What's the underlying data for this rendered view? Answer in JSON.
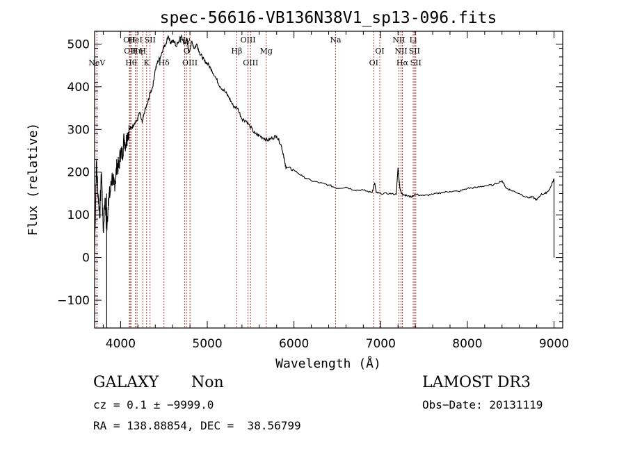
{
  "chart_data": {
    "type": "line",
    "title": "spec-56616-VB136N38V1_sp13-096.fits",
    "xlabel": "Wavelength (Å)",
    "ylabel": "Flux (relative)",
    "xlim": [
      3700,
      9100
    ],
    "ylim": [
      -165,
      530
    ],
    "xticks": [
      4000,
      5000,
      6000,
      7000,
      8000,
      9000
    ],
    "yticks": [
      -100,
      0,
      100,
      200,
      300,
      400,
      500
    ],
    "series": [
      {
        "name": "flux",
        "x": [
          3700,
          3720,
          3740,
          3760,
          3780,
          3800,
          3820,
          3840,
          3860,
          3880,
          3900,
          3920,
          3940,
          3960,
          3980,
          4000,
          4020,
          4040,
          4060,
          4080,
          4100,
          4130,
          4160,
          4190,
          4220,
          4250,
          4280,
          4310,
          4340,
          4370,
          4400,
          4430,
          4460,
          4490,
          4520,
          4550,
          4580,
          4610,
          4640,
          4670,
          4700,
          4730,
          4760,
          4790,
          4820,
          4850,
          4880,
          4910,
          4940,
          4970,
          5000,
          5050,
          5100,
          5150,
          5200,
          5250,
          5300,
          5350,
          5400,
          5450,
          5500,
          5550,
          5600,
          5650,
          5700,
          5750,
          5800,
          5850,
          5880,
          5900,
          5920,
          6000,
          6100,
          6200,
          6300,
          6400,
          6500,
          6600,
          6700,
          6800,
          6900,
          6930,
          6950,
          7000,
          7100,
          7180,
          7200,
          7220,
          7240,
          7260,
          7300,
          7350,
          7400,
          7500,
          7600,
          7700,
          7800,
          7900,
          8000,
          8100,
          8200,
          8300,
          8400,
          8450,
          8500,
          8600,
          8700,
          8750,
          8800,
          8850,
          8900,
          8950,
          9000
        ],
        "y": [
          10,
          220,
          150,
          100,
          200,
          60,
          140,
          60,
          140,
          150,
          190,
          170,
          180,
          220,
          210,
          250,
          240,
          280,
          265,
          290,
          300,
          305,
          315,
          320,
          340,
          315,
          345,
          360,
          385,
          400,
          440,
          460,
          470,
          490,
          500,
          520,
          500,
          510,
          495,
          505,
          520,
          500,
          510,
          480,
          505,
          490,
          500,
          480,
          470,
          460,
          455,
          440,
          420,
          400,
          390,
          375,
          355,
          350,
          325,
          320,
          305,
          290,
          285,
          280,
          275,
          280,
          285,
          265,
          240,
          215,
          210,
          205,
          190,
          180,
          175,
          170,
          162,
          165,
          158,
          158,
          152,
          175,
          152,
          150,
          150,
          148,
          210,
          165,
          150,
          148,
          145,
          142,
          148,
          145,
          148,
          152,
          155,
          155,
          162,
          164,
          168,
          170,
          180,
          162,
          158,
          150,
          140,
          142,
          135,
          148,
          150,
          160,
          185
        ],
        "color": "#000000"
      }
    ],
    "reference_lines": [
      {
        "name": "NeV",
        "x": 3726,
        "row": 3
      },
      {
        "name": "OII",
        "x": 4101,
        "row": 1
      },
      {
        "name": "OII",
        "x": 4110,
        "row": 2
      },
      {
        "name": "Hθ",
        "x": 4120,
        "row": 3
      },
      {
        "name": "HeI",
        "x": 4170,
        "row": 1
      },
      {
        "name": "Hη",
        "x": 4190,
        "row": 2
      },
      {
        "name": "H",
        "x": 4255,
        "row": 2
      },
      {
        "name": "K",
        "x": 4300,
        "row": 3
      },
      {
        "name": "SII",
        "x": 4340,
        "row": 1
      },
      {
        "name": "Hδ",
        "x": 4500,
        "row": 3
      },
      {
        "name": "Hγ",
        "x": 4740,
        "row": 1
      },
      {
        "name": "C",
        "x": 4760,
        "row": 2
      },
      {
        "name": "OIII",
        "x": 4800,
        "row": 3
      },
      {
        "name": "Hβ",
        "x": 5340,
        "row": 2
      },
      {
        "name": "OIII",
        "x": 5470,
        "row": 1
      },
      {
        "name": "OIII",
        "x": 5500,
        "row": 3
      },
      {
        "name": "Mg",
        "x": 5680,
        "row": 2
      },
      {
        "name": "Na",
        "x": 6480,
        "row": 1
      },
      {
        "name": "OI",
        "x": 6920,
        "row": 3
      },
      {
        "name": "OI",
        "x": 6990,
        "row": 2
      },
      {
        "name": "NII",
        "x": 7210,
        "row": 1
      },
      {
        "name": "NII",
        "x": 7235,
        "row": 2
      },
      {
        "name": "Hα",
        "x": 7250,
        "row": 3
      },
      {
        "name": "Li",
        "x": 7375,
        "row": 1
      },
      {
        "name": "SII",
        "x": 7390,
        "row": 2
      },
      {
        "name": "SII",
        "x": 7405,
        "row": 3
      }
    ]
  },
  "info": {
    "class": "GALAXY",
    "subclass": "Non",
    "survey": "LAMOST DR3",
    "cz": "cz = 0.1 ± −9999.0",
    "obs_date": "Obs−Date: 20131119",
    "radec": "RA = 138.88854, DEC =  38.56799"
  }
}
